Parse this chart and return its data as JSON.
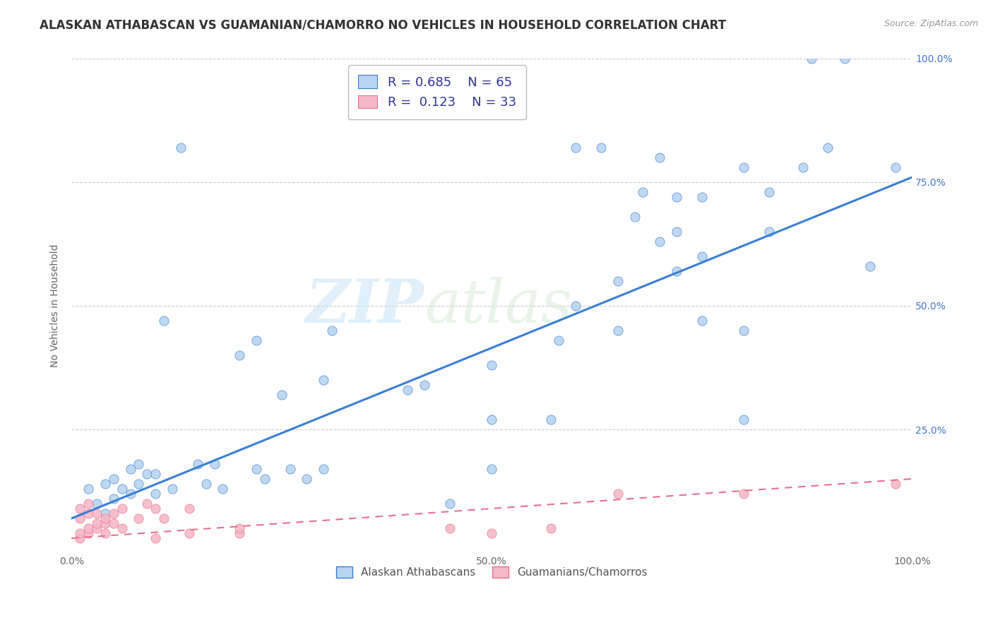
{
  "title": "ALASKAN ATHABASCAN VS GUAMANIAN/CHAMORRO NO VEHICLES IN HOUSEHOLD CORRELATION CHART",
  "source": "Source: ZipAtlas.com",
  "ylabel": "No Vehicles in Household",
  "watermark_zip": "ZIP",
  "watermark_atlas": "atlas",
  "legend_label1": "Alaskan Athabascans",
  "legend_label2": "Guamanians/Chamorros",
  "R1": 0.685,
  "N1": 65,
  "R2": 0.123,
  "N2": 33,
  "color1": "#b8d4f0",
  "color2": "#f5b8c8",
  "trendline1_color": "#3a7fd5",
  "trendline2_color": "#e87090",
  "blue_scatter": [
    [
      0.02,
      0.13
    ],
    [
      0.03,
      0.1
    ],
    [
      0.04,
      0.14
    ],
    [
      0.04,
      0.08
    ],
    [
      0.05,
      0.15
    ],
    [
      0.05,
      0.11
    ],
    [
      0.06,
      0.13
    ],
    [
      0.07,
      0.17
    ],
    [
      0.07,
      0.12
    ],
    [
      0.08,
      0.14
    ],
    [
      0.08,
      0.18
    ],
    [
      0.09,
      0.16
    ],
    [
      0.1,
      0.12
    ],
    [
      0.1,
      0.16
    ],
    [
      0.11,
      0.47
    ],
    [
      0.12,
      0.13
    ],
    [
      0.13,
      0.82
    ],
    [
      0.15,
      0.18
    ],
    [
      0.16,
      0.14
    ],
    [
      0.17,
      0.18
    ],
    [
      0.18,
      0.13
    ],
    [
      0.2,
      0.4
    ],
    [
      0.22,
      0.43
    ],
    [
      0.22,
      0.17
    ],
    [
      0.23,
      0.15
    ],
    [
      0.25,
      0.32
    ],
    [
      0.26,
      0.17
    ],
    [
      0.28,
      0.15
    ],
    [
      0.3,
      0.35
    ],
    [
      0.3,
      0.17
    ],
    [
      0.31,
      0.45
    ],
    [
      0.4,
      0.33
    ],
    [
      0.42,
      0.34
    ],
    [
      0.45,
      0.1
    ],
    [
      0.5,
      0.17
    ],
    [
      0.5,
      0.27
    ],
    [
      0.5,
      0.38
    ],
    [
      0.57,
      0.27
    ],
    [
      0.58,
      0.43
    ],
    [
      0.6,
      0.5
    ],
    [
      0.6,
      0.82
    ],
    [
      0.63,
      0.82
    ],
    [
      0.65,
      0.55
    ],
    [
      0.65,
      0.45
    ],
    [
      0.67,
      0.68
    ],
    [
      0.68,
      0.73
    ],
    [
      0.7,
      0.63
    ],
    [
      0.7,
      0.8
    ],
    [
      0.72,
      0.57
    ],
    [
      0.72,
      0.65
    ],
    [
      0.72,
      0.72
    ],
    [
      0.75,
      0.47
    ],
    [
      0.75,
      0.6
    ],
    [
      0.75,
      0.72
    ],
    [
      0.8,
      0.78
    ],
    [
      0.8,
      0.45
    ],
    [
      0.8,
      0.27
    ],
    [
      0.83,
      0.65
    ],
    [
      0.83,
      0.73
    ],
    [
      0.87,
      0.78
    ],
    [
      0.88,
      1.0
    ],
    [
      0.9,
      0.82
    ],
    [
      0.92,
      1.0
    ],
    [
      0.95,
      0.58
    ],
    [
      0.98,
      0.78
    ]
  ],
  "pink_scatter": [
    [
      0.01,
      0.03
    ],
    [
      0.01,
      0.04
    ],
    [
      0.01,
      0.07
    ],
    [
      0.01,
      0.09
    ],
    [
      0.02,
      0.04
    ],
    [
      0.02,
      0.05
    ],
    [
      0.02,
      0.08
    ],
    [
      0.02,
      0.1
    ],
    [
      0.03,
      0.05
    ],
    [
      0.03,
      0.06
    ],
    [
      0.03,
      0.08
    ],
    [
      0.04,
      0.04
    ],
    [
      0.04,
      0.06
    ],
    [
      0.04,
      0.07
    ],
    [
      0.05,
      0.08
    ],
    [
      0.05,
      0.06
    ],
    [
      0.06,
      0.05
    ],
    [
      0.06,
      0.09
    ],
    [
      0.08,
      0.07
    ],
    [
      0.09,
      0.1
    ],
    [
      0.1,
      0.03
    ],
    [
      0.1,
      0.09
    ],
    [
      0.11,
      0.07
    ],
    [
      0.14,
      0.04
    ],
    [
      0.14,
      0.09
    ],
    [
      0.2,
      0.04
    ],
    [
      0.2,
      0.05
    ],
    [
      0.45,
      0.05
    ],
    [
      0.5,
      0.04
    ],
    [
      0.57,
      0.05
    ],
    [
      0.65,
      0.12
    ],
    [
      0.8,
      0.12
    ],
    [
      0.98,
      0.14
    ]
  ],
  "trendline1_x0": 0.0,
  "trendline1_y0": 0.07,
  "trendline1_x1": 1.0,
  "trendline1_y1": 0.76,
  "trendline2_x0": 0.0,
  "trendline2_y0": 0.03,
  "trendline2_x1": 1.0,
  "trendline2_y1": 0.15,
  "xlim": [
    0,
    1
  ],
  "ylim": [
    0,
    1
  ],
  "xticks": [
    0,
    0.25,
    0.5,
    0.75,
    1.0
  ],
  "xticklabels": [
    "0.0%",
    "",
    "50.0%",
    "",
    "100.0%"
  ],
  "yticks": [
    0.25,
    0.5,
    0.75,
    1.0
  ],
  "yticklabels": [
    "25.0%",
    "50.0%",
    "75.0%",
    "100.0%"
  ],
  "title_fontsize": 12,
  "source_fontsize": 9,
  "axis_fontsize": 10,
  "tick_fontsize": 10,
  "bg_color": "#ffffff",
  "grid_color": "#cccccc",
  "ytick_color": "#4477cc",
  "xtick_color": "#666666"
}
